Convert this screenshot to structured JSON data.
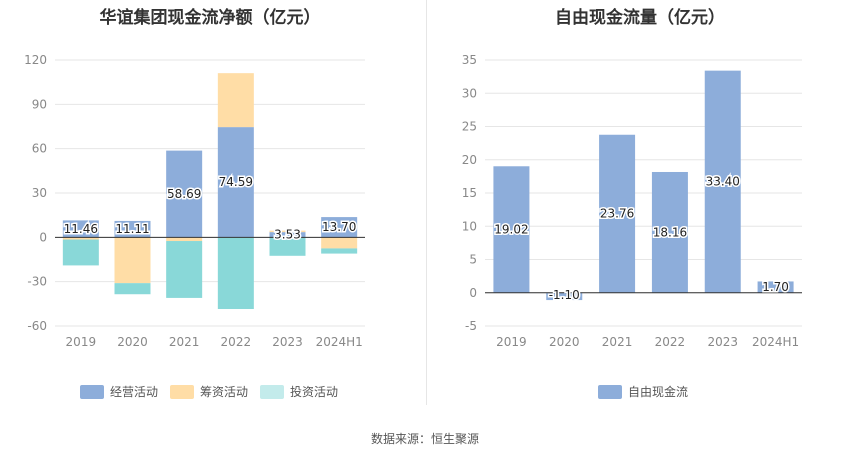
{
  "colors": {
    "operating": "#8DADDA",
    "financing": "#FFDDA6",
    "investing": "#89D8D8",
    "free_cash_flow": "#8DADDA",
    "grid": "#E6E6E6",
    "axis": "#333333"
  },
  "source": "数据来源：恒生聚源",
  "chart_data": [
    {
      "type": "bar",
      "stacked": true,
      "title": "华谊集团现金流净额（亿元）",
      "categories": [
        "2019",
        "2020",
        "2021",
        "2022",
        "2023",
        "2024H1"
      ],
      "ylim": [
        -60,
        120
      ],
      "yticks": [
        "-60",
        "-30",
        "0",
        "30",
        "60",
        "90",
        "120"
      ],
      "grid": true,
      "legend_position": "bottom",
      "series": [
        {
          "name": "经营活动",
          "values": [
            11.46,
            11.11,
            58.69,
            74.59,
            3.53,
            13.7
          ],
          "labels": [
            "11.46",
            "11.11",
            "58.69",
            "74.59",
            "3.53",
            "13.70"
          ]
        },
        {
          "name": "筹资活动",
          "values": [
            -1.5,
            -31.0,
            -2.5,
            36.5,
            1.0,
            -7.5
          ]
        },
        {
          "name": "投资活动",
          "values": [
            -17.5,
            -7.5,
            -38.5,
            -48.5,
            -12.5,
            -3.5
          ]
        }
      ]
    },
    {
      "type": "bar",
      "title": "自由现金流量（亿元）",
      "categories": [
        "2019",
        "2020",
        "2021",
        "2022",
        "2023",
        "2024H1"
      ],
      "ylim": [
        -5,
        35
      ],
      "yticks": [
        "-5",
        "0",
        "5",
        "10",
        "15",
        "20",
        "25",
        "30",
        "35"
      ],
      "grid": true,
      "legend_position": "bottom",
      "series": [
        {
          "name": "自由现金流",
          "values": [
            19.02,
            -1.1,
            23.76,
            18.16,
            33.4,
            1.7
          ],
          "labels": [
            "19.02",
            "-1.10",
            "23.76",
            "18.16",
            "33.40",
            "1.70"
          ]
        }
      ]
    }
  ]
}
